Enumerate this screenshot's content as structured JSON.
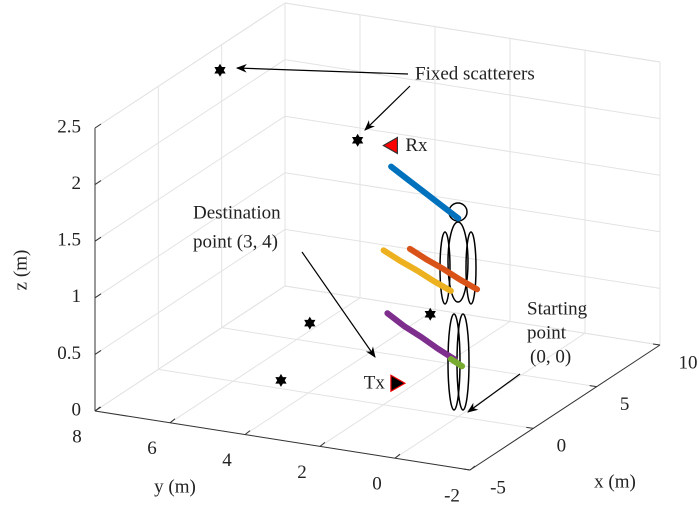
{
  "chart_data": {
    "type": "scatter3d",
    "xlabel": "x (m)",
    "ylabel": "y (m)",
    "zlabel": "z (m)",
    "xlim": [
      -5,
      10
    ],
    "ylim": [
      -2,
      8
    ],
    "zlim": [
      0,
      2.5
    ],
    "xticks": [
      -5,
      0,
      5,
      10
    ],
    "yticks": [
      -2,
      0,
      2,
      4,
      6,
      8
    ],
    "zticks": [
      0,
      0.5,
      1,
      1.5,
      2,
      2.5
    ],
    "grid": true,
    "series": [
      {
        "color": "#0072bd",
        "x": [
          1.8,
          1.35,
          0.9,
          0.45,
          0
        ],
        "y": [
          2.4,
          1.8,
          1.2,
          0.6,
          0
        ],
        "z": [
          1.95,
          1.9,
          1.85,
          1.8,
          1.75
        ]
      },
      {
        "color": "#d95319",
        "x": [
          1.8,
          1.35,
          0.9,
          0.45,
          0
        ],
        "y": [
          1.9,
          1.3,
          0.7,
          0.1,
          -0.5
        ],
        "z": [
          1.25,
          1.22,
          1.2,
          1.17,
          1.15
        ]
      },
      {
        "color": "#edb120",
        "x": [
          1.8,
          1.35,
          0.9,
          0.45,
          0
        ],
        "y": [
          2.6,
          2.0,
          1.4,
          0.8,
          0.2
        ],
        "z": [
          1.2,
          1.17,
          1.15,
          1.12,
          1.1
        ]
      },
      {
        "color": "#7e2f8e",
        "x": [
          1.8,
          1.35,
          0.9,
          0.45,
          0
        ],
        "y": [
          2.5,
          1.9,
          1.3,
          0.7,
          0.1
        ],
        "z": [
          0.65,
          0.6,
          0.57,
          0.53,
          0.5
        ]
      },
      {
        "color": "#77ac30",
        "x": [
          0.3,
          0
        ],
        "y": [
          0.3,
          -0.1
        ],
        "z": [
          0.47,
          0.45
        ]
      }
    ],
    "scatterers": {
      "color": "#000000",
      "x": [
        2.5,
        3.3,
        1.3,
        4,
        0.8
      ],
      "y": [
        7.2,
        3.8,
        4.4,
        2.1,
        5.0
      ],
      "z": [
        2.5,
        2,
        0.5,
        0.5,
        0
      ]
    },
    "markers": [
      {
        "label": "Rx",
        "color": "#ff0000",
        "x": 3.3,
        "y": 2.9,
        "z": 2
      },
      {
        "label": "Tx",
        "color": "#000000",
        "x": -1,
        "y": 1.3,
        "z": 0.3
      }
    ],
    "annotations": [
      {
        "lines": [
          "Fixed scatterers"
        ]
      },
      {
        "lines": [
          "Destination",
          "point (3, 4)"
        ]
      },
      {
        "lines": [
          "Starting",
          "point",
          "(0, 0)"
        ]
      }
    ]
  }
}
